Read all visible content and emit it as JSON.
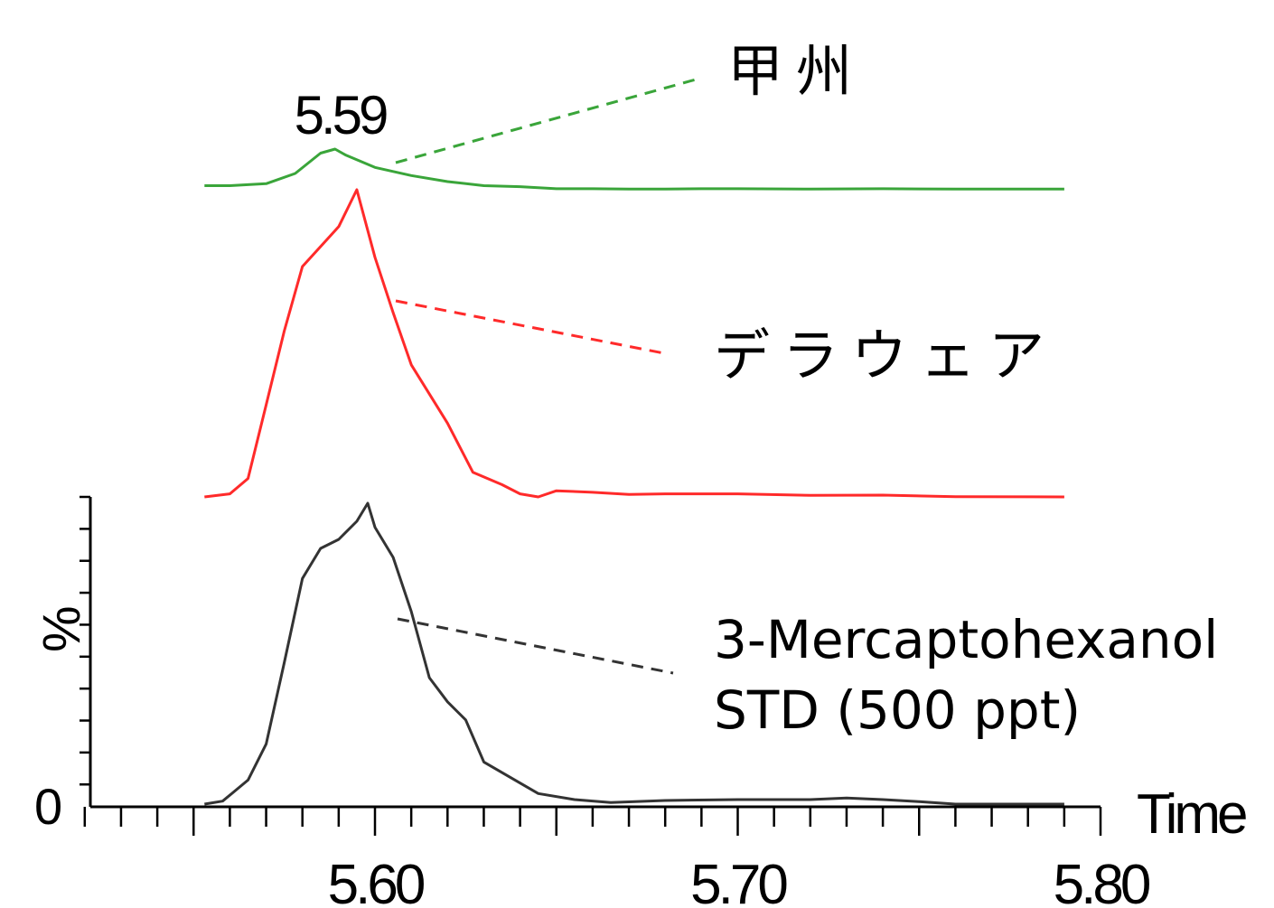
{
  "chart_data": {
    "type": "line",
    "xlabel": "Time",
    "ylabel": "%",
    "y_zero_label": "0",
    "xlim": [
      5.5,
      5.8
    ],
    "x_tick_labels": [
      "5.60",
      "5.70",
      "5.80"
    ],
    "x_tick_values": [
      5.6,
      5.7,
      5.8
    ],
    "peak_annotation": "5.59",
    "series": [
      {
        "name": "甲州",
        "color": "#3aa53a",
        "label_lines": [
          "甲州"
        ],
        "points": [
          [
            5.553,
            0.02
          ],
          [
            5.56,
            0.02
          ],
          [
            5.57,
            0.03
          ],
          [
            5.578,
            0.08
          ],
          [
            5.585,
            0.18
          ],
          [
            5.589,
            0.2
          ],
          [
            5.592,
            0.17
          ],
          [
            5.6,
            0.11
          ],
          [
            5.61,
            0.07
          ],
          [
            5.62,
            0.04
          ],
          [
            5.63,
            0.02
          ],
          [
            5.64,
            0.015
          ],
          [
            5.65,
            0.005
          ],
          [
            5.66,
            0.005
          ],
          [
            5.67,
            0.003
          ],
          [
            5.68,
            0.003
          ],
          [
            5.69,
            0.005
          ],
          [
            5.7,
            0.005
          ],
          [
            5.72,
            0.003
          ],
          [
            5.74,
            0.005
          ],
          [
            5.76,
            0.003
          ],
          [
            5.79,
            0.003
          ]
        ]
      },
      {
        "name": "デラウェア",
        "color": "#ff2a2a",
        "label_lines": [
          "デラウェア"
        ],
        "points": [
          [
            5.553,
            0.0
          ],
          [
            5.56,
            0.01
          ],
          [
            5.565,
            0.06
          ],
          [
            5.57,
            0.3
          ],
          [
            5.575,
            0.54
          ],
          [
            5.58,
            0.75
          ],
          [
            5.59,
            0.88
          ],
          [
            5.595,
            1.0
          ],
          [
            5.6,
            0.78
          ],
          [
            5.605,
            0.6
          ],
          [
            5.61,
            0.43
          ],
          [
            5.62,
            0.24
          ],
          [
            5.627,
            0.08
          ],
          [
            5.635,
            0.04
          ],
          [
            5.64,
            0.01
          ],
          [
            5.645,
            0.0
          ],
          [
            5.65,
            0.02
          ],
          [
            5.66,
            0.015
          ],
          [
            5.67,
            0.008
          ],
          [
            5.68,
            0.01
          ],
          [
            5.7,
            0.01
          ],
          [
            5.72,
            0.005
          ],
          [
            5.74,
            0.006
          ],
          [
            5.76,
            0.001
          ],
          [
            5.79,
            0.0
          ]
        ]
      },
      {
        "name": "3-Mercaptohexanol STD (500 ppt)",
        "color": "#333333",
        "label_lines": [
          "3-Mercaptohexanol",
          "STD (500 ppt)"
        ],
        "points": [
          [
            5.553,
            0.0
          ],
          [
            5.558,
            0.01
          ],
          [
            5.565,
            0.08
          ],
          [
            5.57,
            0.2
          ],
          [
            5.575,
            0.47
          ],
          [
            5.58,
            0.75
          ],
          [
            5.585,
            0.85
          ],
          [
            5.59,
            0.88
          ],
          [
            5.595,
            0.94
          ],
          [
            5.598,
            1.0
          ],
          [
            5.6,
            0.92
          ],
          [
            5.605,
            0.82
          ],
          [
            5.61,
            0.64
          ],
          [
            5.615,
            0.42
          ],
          [
            5.62,
            0.34
          ],
          [
            5.625,
            0.28
          ],
          [
            5.63,
            0.14
          ],
          [
            5.64,
            0.07
          ],
          [
            5.645,
            0.035
          ],
          [
            5.655,
            0.015
          ],
          [
            5.665,
            0.005
          ],
          [
            5.68,
            0.012
          ],
          [
            5.7,
            0.015
          ],
          [
            5.72,
            0.015
          ],
          [
            5.73,
            0.02
          ],
          [
            5.74,
            0.015
          ],
          [
            5.75,
            0.008
          ],
          [
            5.76,
            0.0
          ],
          [
            5.79,
            0.0
          ]
        ]
      }
    ]
  }
}
